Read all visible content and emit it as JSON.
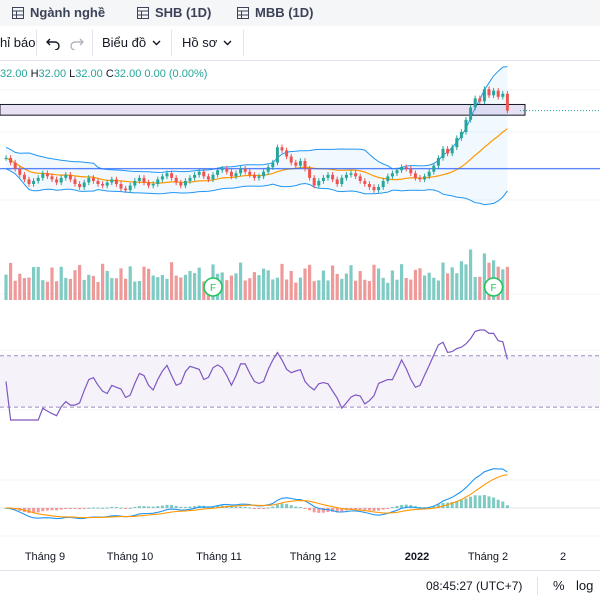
{
  "tabs": [
    {
      "label": "Ngành nghề",
      "icon": "table-icon"
    },
    {
      "label": "SHB (1D)",
      "icon": "table-icon"
    },
    {
      "label": "MBB (1D)",
      "icon": "table-icon"
    }
  ],
  "toolbar": {
    "indicators_label": "hỉ báo",
    "chart_label": "Biểu đồ",
    "profile_label": "Hồ sơ"
  },
  "ohlc": {
    "o": "32.00",
    "h_key": "H",
    "h": "32.00",
    "l_key": "L",
    "l": "32.00",
    "c_key": "C",
    "c": "32.00",
    "change": "0.00 (0.00%)"
  },
  "bottom": {
    "time": "08:45:27 (UTC+7)",
    "percent": "%",
    "log": "log"
  },
  "colors": {
    "up": "#26a69a",
    "down": "#ef5350",
    "bollinger": "#2196f3",
    "ma": "#ff9800",
    "rsi": "#7e57c2",
    "volume_up": "#80cbc4",
    "volume_down": "#ef9a9a",
    "event_marker": "#22c55e"
  },
  "chart_data": {
    "type": "candlestick",
    "x_labels": [
      "Tháng 9",
      "Tháng 10",
      "Tháng 11",
      "Tháng 12",
      "2022",
      "Tháng 2",
      "2"
    ],
    "event_marker_label": "F",
    "rsi_band": [
      30,
      70
    ],
    "closes": [
      28.9,
      28.6,
      28.2,
      27.8,
      27.5,
      27.2,
      27.4,
      27.6,
      27.9,
      27.7,
      27.5,
      27.3,
      27.6,
      27.8,
      27.5,
      27.2,
      27.0,
      27.3,
      27.6,
      27.4,
      27.2,
      27.1,
      27.3,
      27.5,
      27.2,
      26.9,
      26.8,
      27.1,
      27.4,
      27.6,
      27.3,
      27.1,
      27.2,
      27.5,
      27.7,
      27.9,
      27.6,
      27.3,
      27.1,
      27.4,
      27.6,
      27.8,
      28.0,
      27.7,
      27.5,
      27.8,
      28.1,
      28.2,
      28.0,
      27.7,
      27.9,
      28.2,
      28.0,
      27.8,
      27.6,
      27.7,
      28.0,
      28.3,
      28.6,
      29.6,
      29.4,
      29.0,
      28.6,
      28.4,
      28.7,
      28.2,
      27.6,
      27.1,
      27.4,
      27.6,
      27.8,
      27.5,
      27.2,
      27.6,
      27.8,
      27.9,
      27.7,
      27.4,
      27.2,
      27.0,
      26.8,
      27.0,
      27.4,
      27.7,
      27.9,
      28.1,
      28.3,
      28.2,
      27.9,
      27.6,
      27.5,
      27.7,
      28.0,
      28.4,
      28.9,
      29.5,
      29.2,
      29.6,
      30.2,
      30.6,
      31.4,
      32.2,
      32.8,
      32.6,
      33.4,
      33.0,
      33.3,
      32.9,
      33.1,
      32.0
    ]
  }
}
